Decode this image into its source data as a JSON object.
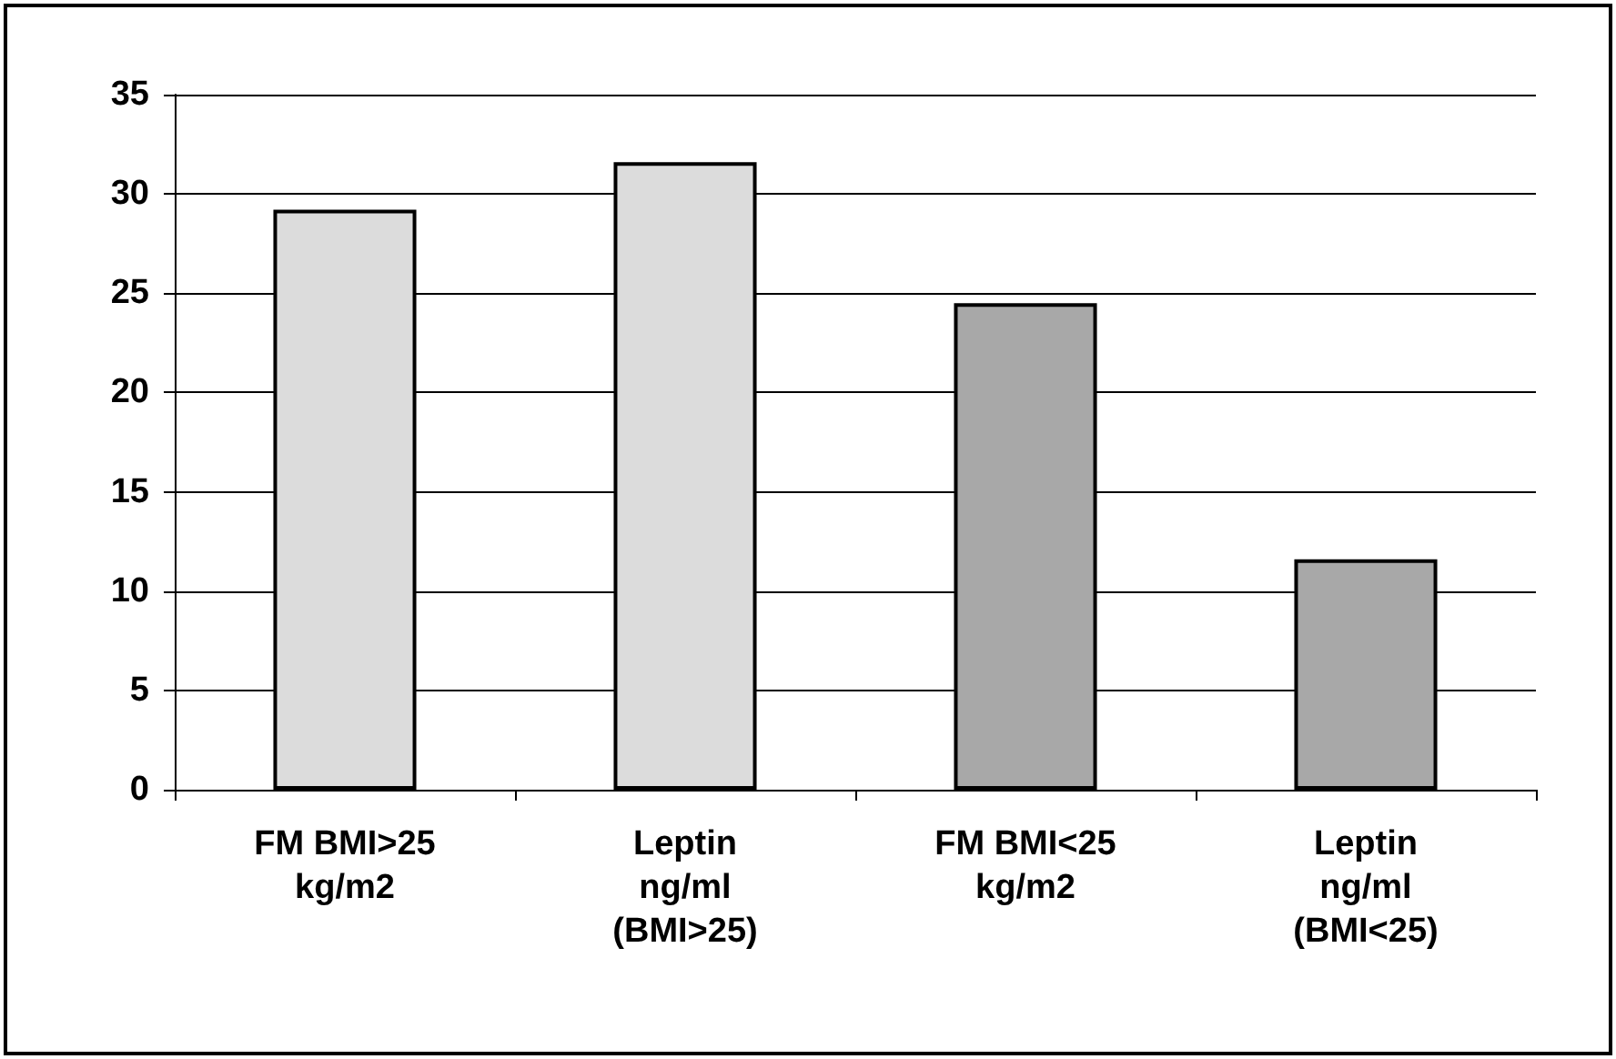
{
  "chart_data": {
    "type": "bar",
    "categories": [
      "FM BMI>25\nkg/m2",
      "Leptin\nng/ml\n(BMI>25)",
      "FM BMI<25\nkg/m2",
      "Leptin\nng/ml\n(BMI<25)"
    ],
    "values": [
      29.2,
      31.6,
      24.5,
      11.6
    ],
    "colors": [
      "#dcdcdc",
      "#dcdcdc",
      "#a8a8a8",
      "#a8a8a8"
    ],
    "ylim": [
      0,
      35
    ],
    "yticks": [
      0,
      5,
      10,
      15,
      20,
      25,
      30,
      35
    ],
    "grid": "y"
  }
}
